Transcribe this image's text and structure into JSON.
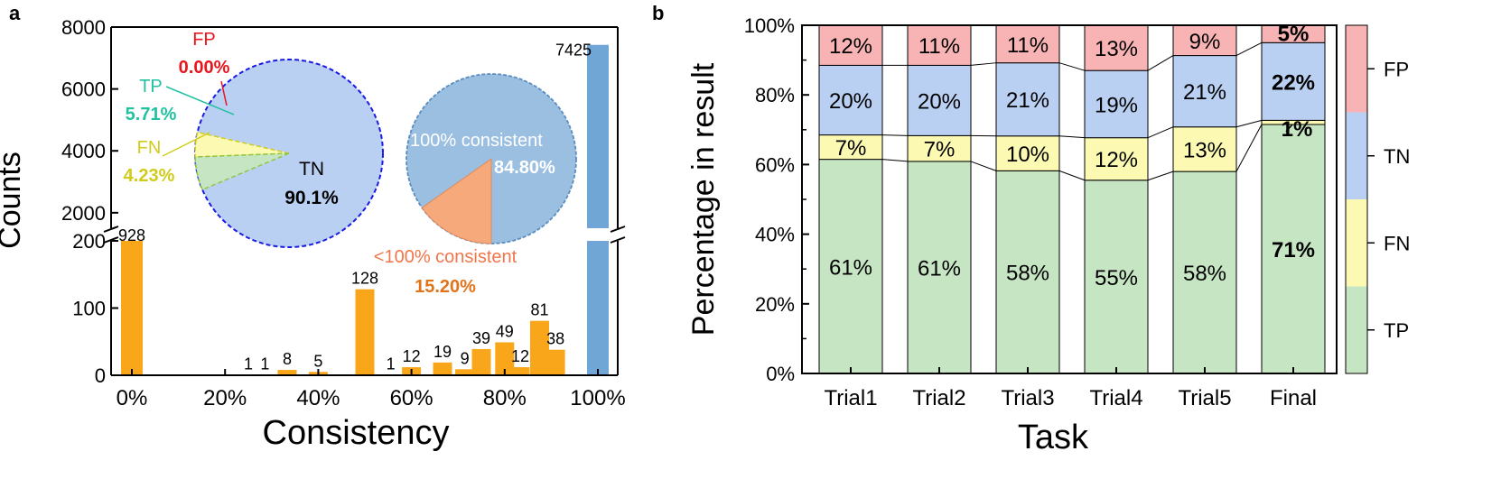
{
  "colors": {
    "orange_bar": "#FAA61A",
    "blue_bar": "#6FA6D6",
    "tp": "#C6E5C3",
    "fn": "#FCF9B3",
    "tn": "#BAD0F3",
    "fp": "#F8B4B4",
    "fp_text": "#E8161C",
    "tp_text": "#22C2A0",
    "fn_text": "#D1CC1C",
    "pie1_border": "#1A1AE6",
    "pie2_blue": "#9BBFE0",
    "pie2_orange": "#F6A97A",
    "pie2_border": "#5A8CC0",
    "inconsistent_text": "#F0764A",
    "inconsistent_value": "#E0741C"
  },
  "chart_data": [
    {
      "panel": "a",
      "type": "bar",
      "xlabel": "Consistency",
      "ylabel": "Counts",
      "x_ticks": [
        "0%",
        "20%",
        "40%",
        "60%",
        "80%",
        "100%"
      ],
      "y_ticks_lower": [
        "0",
        "100",
        "200"
      ],
      "y_ticks_upper": [
        "2000",
        "4000",
        "6000",
        "8000"
      ],
      "ylim_lower": [
        0,
        200
      ],
      "ylim_upper": [
        1500,
        8000
      ],
      "y_axis_break": true,
      "bars": [
        {
          "x": 0,
          "value": 928,
          "label": "928",
          "color": "orange"
        },
        {
          "x": 25,
          "value": 1,
          "label": "1",
          "color": "orange"
        },
        {
          "x": 28.57,
          "value": 1,
          "label": "1",
          "color": "orange"
        },
        {
          "x": 33.33,
          "value": 8,
          "label": "8",
          "color": "orange"
        },
        {
          "x": 40,
          "value": 5,
          "label": "5",
          "color": "orange"
        },
        {
          "x": 50,
          "value": 128,
          "label": "128",
          "color": "orange"
        },
        {
          "x": 55.56,
          "value": 1,
          "label": "1",
          "color": "orange"
        },
        {
          "x": 60,
          "value": 12,
          "label": "12",
          "color": "orange"
        },
        {
          "x": 66.67,
          "value": 19,
          "label": "19",
          "color": "orange"
        },
        {
          "x": 71.43,
          "value": 9,
          "label": "9",
          "color": "orange"
        },
        {
          "x": 75,
          "value": 39,
          "label": "39",
          "color": "orange"
        },
        {
          "x": 80,
          "value": 49,
          "label": "49",
          "color": "orange"
        },
        {
          "x": 83.33,
          "value": 12,
          "label": "12",
          "color": "orange"
        },
        {
          "x": 87.5,
          "value": 81,
          "label": "81",
          "color": "orange"
        },
        {
          "x": 90.91,
          "value": 38,
          "label": "38",
          "color": "orange"
        },
        {
          "x": 100,
          "value": 7425,
          "label": "7425",
          "color": "blue"
        }
      ],
      "inset_pies": [
        {
          "type": "pie",
          "slices": [
            {
              "name": "TN",
              "value": 90.1,
              "label": "90.1%"
            },
            {
              "name": "FN",
              "value": 4.23,
              "label": "4.23%"
            },
            {
              "name": "TP",
              "value": 5.71,
              "label": "5.71%"
            },
            {
              "name": "FP",
              "value": 0.0,
              "label": "0.00%"
            }
          ]
        },
        {
          "type": "pie",
          "slices": [
            {
              "name": "100% consistent",
              "value": 84.8,
              "label": "84.80%"
            },
            {
              "name": "<100% consistent",
              "value": 15.2,
              "label": "15.20%"
            }
          ]
        }
      ]
    },
    {
      "panel": "b",
      "type": "bar",
      "stacked": true,
      "xlabel": "Task",
      "ylabel": "Percentage in result",
      "categories": [
        "Trial1",
        "Trial2",
        "Trial3",
        "Trial4",
        "Trial5",
        "Final"
      ],
      "y_ticks": [
        "0%",
        "20%",
        "40%",
        "60%",
        "80%",
        "100%"
      ],
      "ylim": [
        0,
        100
      ],
      "series": [
        {
          "name": "TP",
          "values": [
            61.5,
            60.9,
            58.2,
            55.5,
            58.0,
            71.5
          ],
          "labels": [
            "61%",
            "61%",
            "58%",
            "55%",
            "58%",
            "71%"
          ]
        },
        {
          "name": "FN",
          "values": [
            7.0,
            7.4,
            10.0,
            12.2,
            12.8,
            1.2
          ],
          "labels": [
            "7%",
            "7%",
            "10%",
            "12%",
            "13%",
            "1%"
          ]
        },
        {
          "name": "TN",
          "values": [
            20.0,
            20.2,
            21.0,
            19.3,
            20.5,
            22.3
          ],
          "labels": [
            "20%",
            "20%",
            "21%",
            "19%",
            "21%",
            "22%"
          ]
        },
        {
          "name": "FP",
          "values": [
            11.5,
            11.5,
            10.8,
            13.0,
            8.7,
            5.0
          ],
          "labels": [
            "12%",
            "11%",
            "11%",
            "13%",
            "9%",
            "5%"
          ]
        }
      ],
      "legend": [
        "FP",
        "TN",
        "FN",
        "TP"
      ],
      "legend_position": "right"
    }
  ],
  "panel_a": {
    "letter": "a",
    "pie1_labels": {
      "fp": "FP",
      "fp_value": "0.00%",
      "tp": "TP",
      "tp_value": "5.71%",
      "fn": "FN",
      "fn_value": "4.23%",
      "tn": "TN",
      "tn_value": "90.1%"
    },
    "pie2_labels": {
      "consistent": "100% consistent",
      "consistent_value": "84.80%",
      "inconsistent": "<100% consistent",
      "inconsistent_value": "15.20%"
    }
  },
  "panel_b": {
    "letter": "b"
  }
}
